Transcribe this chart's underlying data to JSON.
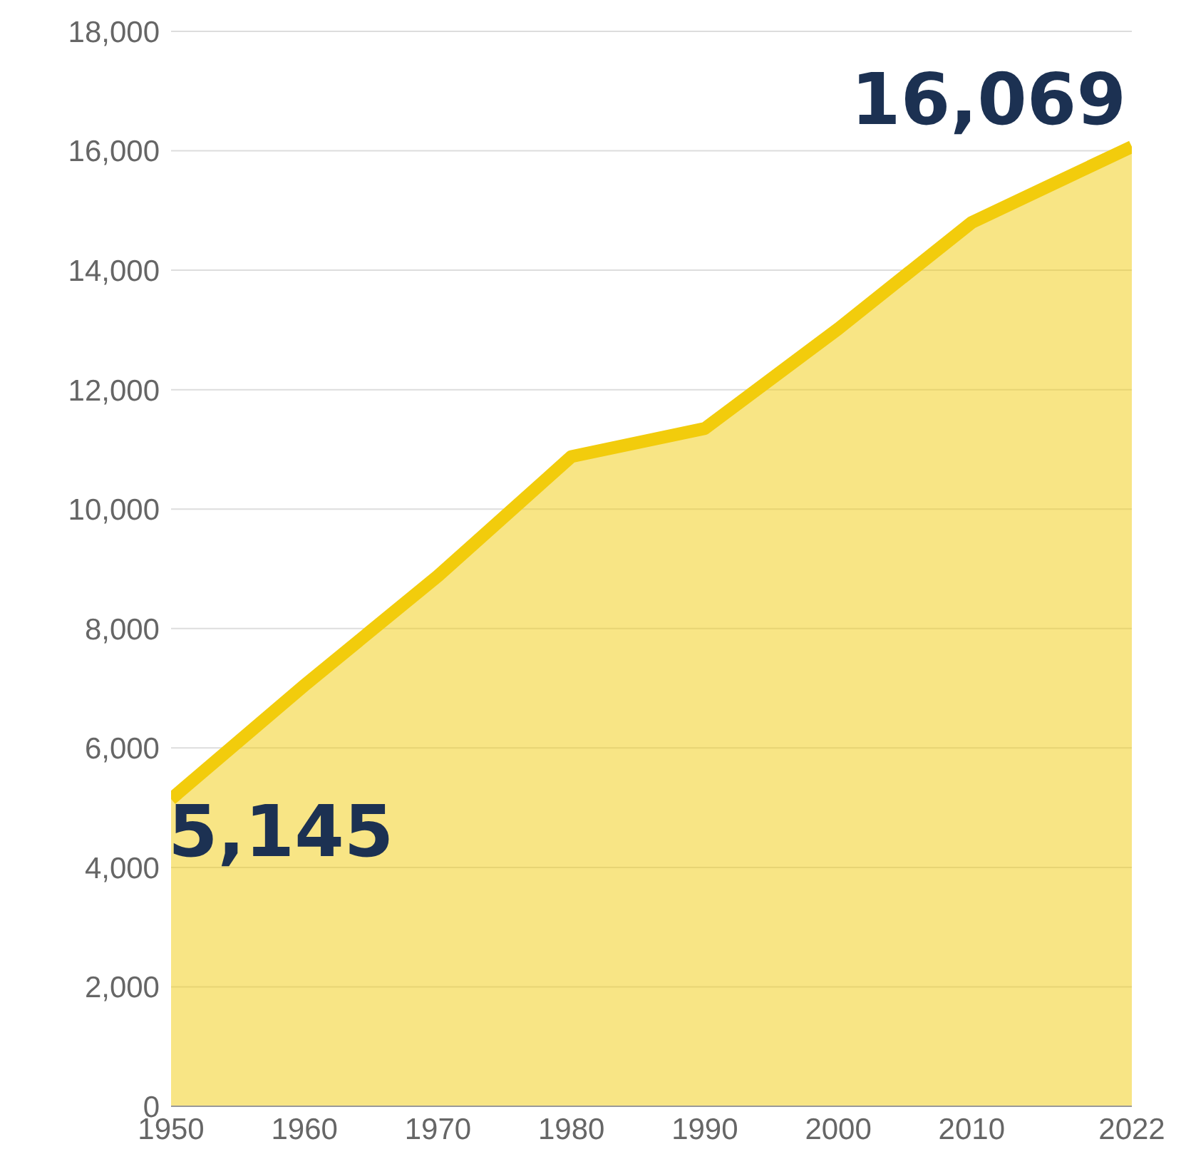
{
  "chart_data": {
    "type": "area",
    "x": [
      1950,
      1960,
      1970,
      1980,
      1990,
      2000,
      2010,
      2022
    ],
    "series": [
      {
        "color": "#f2cc0c",
        "values": [
          5145,
          7050,
          8880,
          10880,
          11350,
          13020,
          14800,
          16069
        ]
      }
    ],
    "xlim": [
      1950,
      2022
    ],
    "xticks": [
      1950,
      1960,
      1970,
      1980,
      1990,
      2000,
      2010,
      2022
    ],
    "ylim": [
      0,
      18000
    ],
    "yticks": [
      0,
      {
        "value": 2000,
        "label": "2,000"
      },
      {
        "value": 4000,
        "label": "4,000"
      },
      {
        "value": 6000,
        "label": "6,000"
      },
      {
        "value": 8000,
        "label": "8,000"
      },
      {
        "value": 10000,
        "label": "10,000"
      },
      {
        "value": 12000,
        "label": "12,000"
      },
      {
        "value": 14000,
        "label": "14,000"
      },
      {
        "value": 16000,
        "label": "16,000"
      },
      {
        "value": 18000,
        "label": "18,000"
      }
    ],
    "grid": "y",
    "annotations": [
      {
        "text": "5,145",
        "x": 1950,
        "y": 5145
      },
      {
        "text": "16,069",
        "x": 2022,
        "y": 16069
      }
    ]
  }
}
